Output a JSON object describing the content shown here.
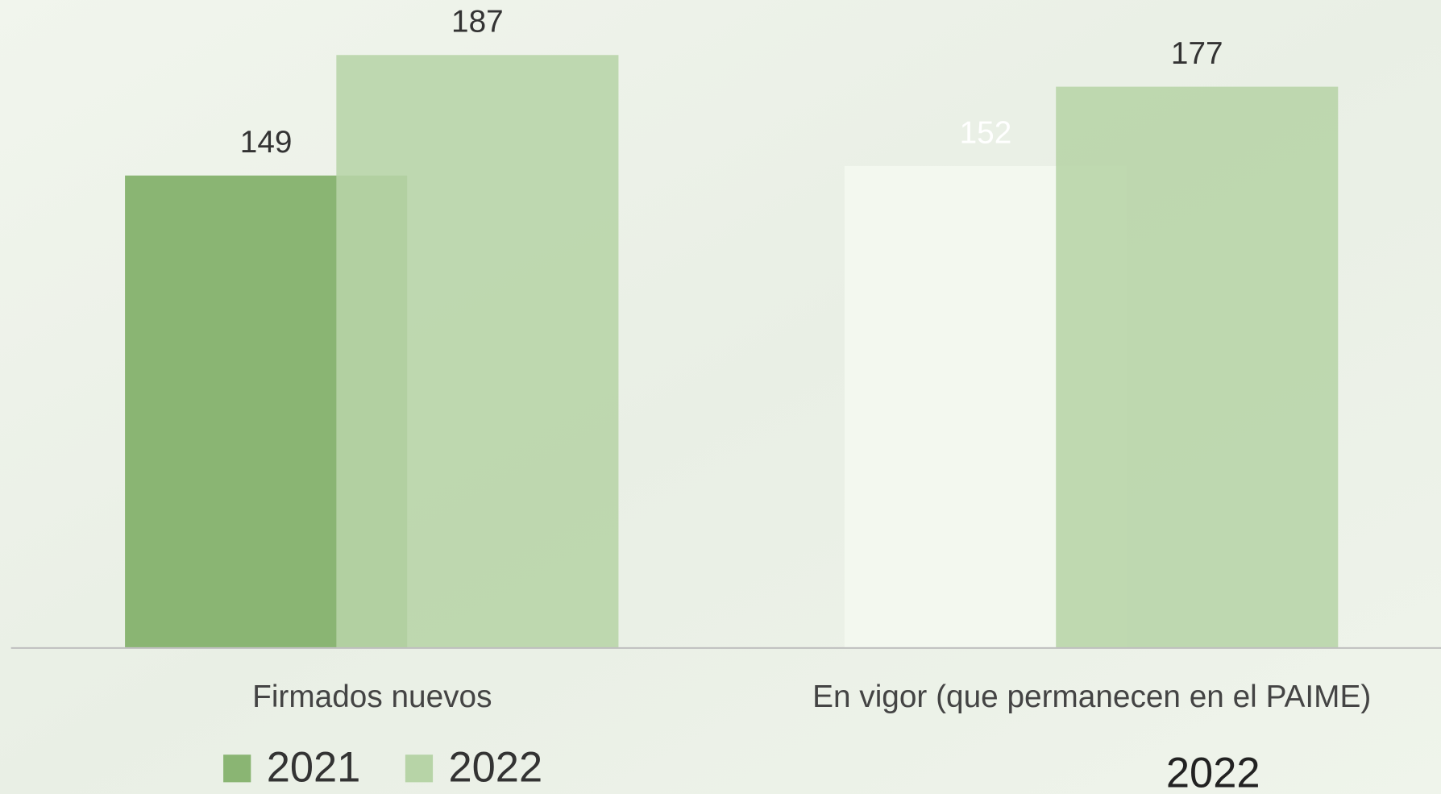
{
  "chart_data": {
    "type": "bar",
    "categories": [
      "Firmados nuevos",
      "En vigor (que permanecen en el PAIME)"
    ],
    "series": [
      {
        "name": "2021",
        "color": "#8ab573",
        "colors": [
          "#8ab573",
          "#f3f8ef"
        ],
        "label_colors": [
          "#333333",
          "#ffffff"
        ],
        "values": [
          149,
          152
        ]
      },
      {
        "name": "2022",
        "color": "#b7d4a7",
        "label_colors": [
          "#333333",
          "#333333"
        ],
        "values": [
          187,
          177
        ]
      }
    ],
    "ylim": [
      0,
      200
    ],
    "legend": "bottom-left",
    "annotations": [
      "2022"
    ]
  }
}
